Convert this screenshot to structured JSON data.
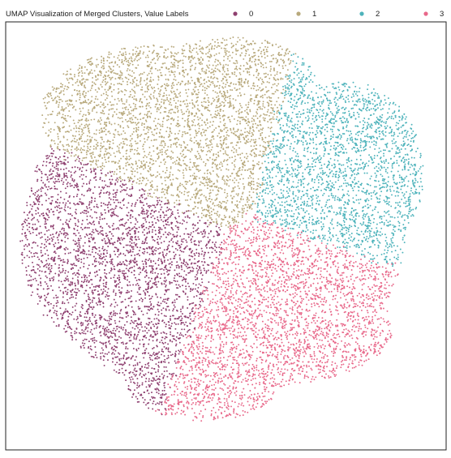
{
  "chart_data": {
    "type": "scatter",
    "title": "UMAP Visualization of Merged Clusters, Value Labels",
    "xlabel": "",
    "ylabel": "",
    "grid": false,
    "axes_ticks": false,
    "legend_placement": "top-right, horizontal",
    "point_count_estimate": 12000,
    "series": [
      {
        "name": "0",
        "color": "#8e3f6f",
        "region": "left / lower-left lobe",
        "approx_points": 3200
      },
      {
        "name": "1",
        "color": "#b8a97c",
        "region": "top / upper-left lobe",
        "approx_points": 3400
      },
      {
        "name": "2",
        "color": "#4eb3bb",
        "region": "right / upper-right lobe",
        "approx_points": 2400
      },
      {
        "name": "3",
        "color": "#e8688a",
        "region": "lower-right / bottom-center lobe",
        "approx_points": 3000
      }
    ]
  }
}
